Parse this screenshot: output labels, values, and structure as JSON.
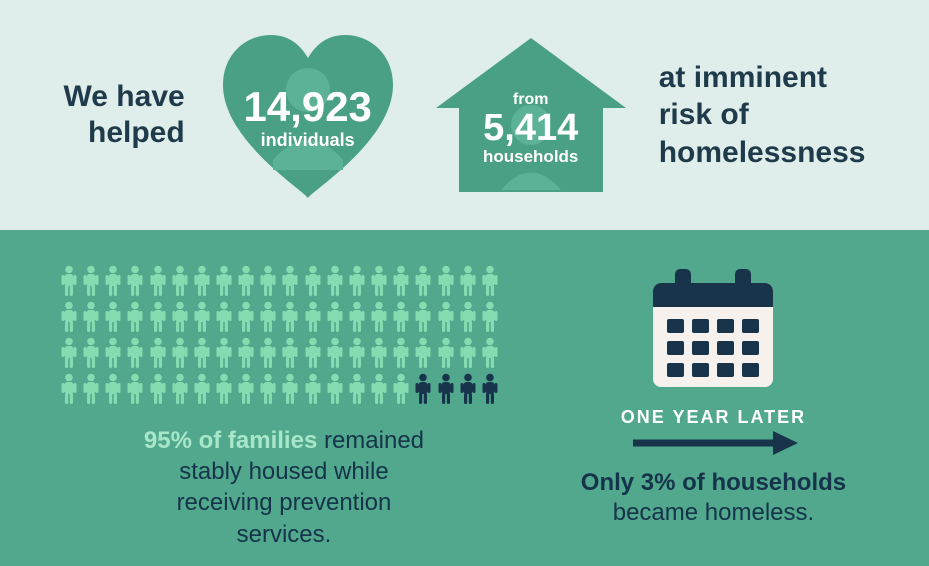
{
  "colors": {
    "top_bg": "#dfeeea",
    "bottom_bg": "#52a88c",
    "shape_fill": "#4aa084",
    "shape_inner_accent": "#5bb297",
    "dark_navy": "#15334a",
    "heading_navy": "#1f3a4a",
    "white": "#ffffff",
    "light_mint": "#a8e6c9",
    "person_light": "#86dcb1",
    "person_dark": "#18344b",
    "calendar_body": "#f6f1ec"
  },
  "top": {
    "lead_l1": "We have",
    "lead_l2": "helped",
    "heart_number": "14,923",
    "heart_label": "individuals",
    "house_from": "from",
    "house_number": "5,414",
    "house_label": "households",
    "tail_l1": "at imminent",
    "tail_l2": "risk of",
    "tail_l3": "homelessness"
  },
  "bottom": {
    "people": {
      "rows": 4,
      "cols": 20,
      "total": 80,
      "light_count": 76,
      "dark_count": 4
    },
    "left_em": "95% of families",
    "left_rest_l1": " remained",
    "left_rest_l2": "stably housed while",
    "left_rest_l3": "receiving prevention",
    "left_rest_l4": "services.",
    "one_year": "ONE YEAR LATER",
    "right_em": "Only 3% of households",
    "right_rest": "became homeless."
  }
}
